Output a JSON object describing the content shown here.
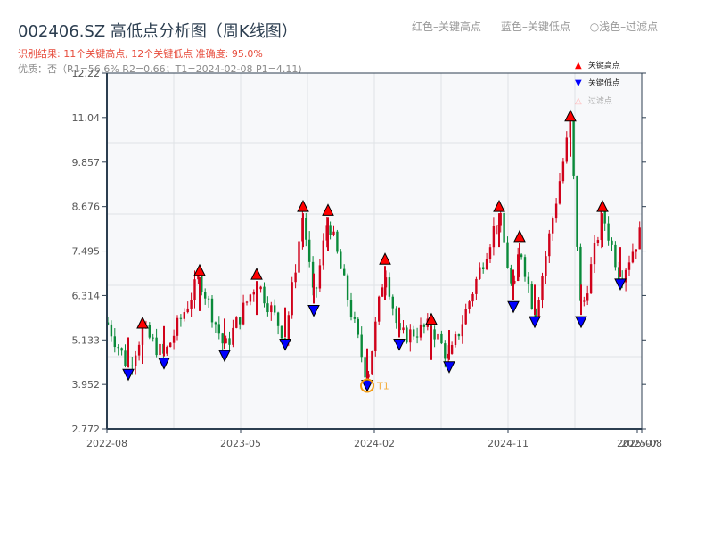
{
  "header": {
    "title": "002406.SZ 高低点分析图（周K线图）",
    "result_line": "识别结果: 11个关键高点, 12个关键低点  准确度: 95.0%",
    "quality_line": "优质：否（R1=56.6%  R2=0.66；T1=2024-02-08 P1=4.11)"
  },
  "top_legend": {
    "red": "红色–关键高点",
    "blue": "蓝色–关键低点",
    "light": "○浅色–过滤点"
  },
  "legend": {
    "items": [
      {
        "label": "关键高点",
        "icon": "red-up-triangle",
        "color": "#ff0000"
      },
      {
        "label": "关键低点",
        "icon": "blue-down-triangle",
        "color": "#0000ff"
      },
      {
        "label": "过滤点",
        "icon": "light-up-triangle",
        "color": "#ffcccc"
      }
    ]
  },
  "colors": {
    "up_candle": "#d0021b",
    "down_candle": "#0a8a3a",
    "high_marker": "#ff0000",
    "low_marker": "#0000ff",
    "t1_ring": "#f39c12",
    "axis": "#2c3e50",
    "plot_bg": "#f7f8fa",
    "grid": "#dfe2e6"
  },
  "annotation": {
    "label": "T1",
    "date": "2024-02-08",
    "price": 4.11
  },
  "chart_data": {
    "type": "candlestick",
    "title": "002406.SZ 高低点分析图（周K线图）",
    "xlabel": "",
    "ylabel": "",
    "ylim": [
      2.772,
      12.22
    ],
    "yticks": [
      2.772,
      3.952,
      5.133,
      6.314,
      7.495,
      8.676,
      9.857,
      11.04,
      12.22
    ],
    "xticks": [
      "2022-08",
      "2023-05",
      "2024-02",
      "2024-11",
      "2025-07",
      "2025-08"
    ],
    "grid": true,
    "legend_position": "upper right",
    "key_highs": [
      {
        "approx_date": "2022-10",
        "price": 5.4
      },
      {
        "approx_date": "2023-01",
        "price": 6.8
      },
      {
        "approx_date": "2023-05",
        "price": 6.7
      },
      {
        "approx_date": "2023-08",
        "price": 8.5
      },
      {
        "approx_date": "2023-10",
        "price": 8.4
      },
      {
        "approx_date": "2024-03",
        "price": 7.1
      },
      {
        "approx_date": "2024-06",
        "price": 5.5
      },
      {
        "approx_date": "2024-11",
        "price": 8.5
      },
      {
        "approx_date": "2024-12",
        "price": 7.7
      },
      {
        "approx_date": "2025-03",
        "price": 10.9
      },
      {
        "approx_date": "2025-05",
        "price": 8.5
      }
    ],
    "key_lows": [
      {
        "approx_date": "2022-09",
        "price": 4.4
      },
      {
        "approx_date": "2022-11",
        "price": 4.7
      },
      {
        "approx_date": "2023-03",
        "price": 4.9
      },
      {
        "approx_date": "2023-07",
        "price": 5.2
      },
      {
        "approx_date": "2023-09",
        "price": 6.1
      },
      {
        "approx_date": "2024-02-08",
        "price": 4.11,
        "label": "T1"
      },
      {
        "approx_date": "2024-04",
        "price": 5.2
      },
      {
        "approx_date": "2024-07",
        "price": 4.6
      },
      {
        "approx_date": "2024-12",
        "price": 6.2
      },
      {
        "approx_date": "2025-01",
        "price": 5.8
      },
      {
        "approx_date": "2025-04",
        "price": 5.8
      },
      {
        "approx_date": "2025-06",
        "price": 6.8
      }
    ],
    "last_close_approx": 8.0
  }
}
